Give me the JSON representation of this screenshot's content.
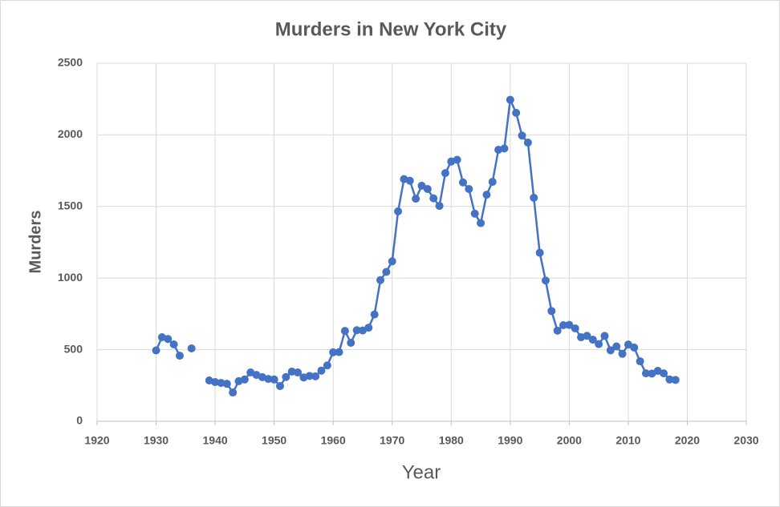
{
  "chart_data": {
    "type": "line",
    "title": "Murders in New York City",
    "x_label": "Year",
    "y_label": "Murders",
    "x": [
      1930,
      1931,
      1932,
      1933,
      1934,
      1935,
      1936,
      1937,
      1938,
      1939,
      1940,
      1941,
      1942,
      1943,
      1944,
      1945,
      1946,
      1947,
      1948,
      1949,
      1950,
      1951,
      1952,
      1953,
      1954,
      1955,
      1956,
      1957,
      1958,
      1959,
      1960,
      1961,
      1962,
      1963,
      1964,
      1965,
      1966,
      1967,
      1968,
      1969,
      1970,
      1971,
      1972,
      1973,
      1974,
      1975,
      1976,
      1977,
      1978,
      1979,
      1980,
      1981,
      1982,
      1983,
      1984,
      1985,
      1986,
      1987,
      1988,
      1989,
      1990,
      1991,
      1992,
      1993,
      1994,
      1995,
      1996,
      1997,
      1998,
      1999,
      2000,
      2001,
      2002,
      2003,
      2004,
      2005,
      2006,
      2007,
      2008,
      2009,
      2010,
      2011,
      2012,
      2013,
      2014,
      2015,
      2016,
      2017,
      2018
    ],
    "values": [
      495,
      587,
      575,
      537,
      458,
      null,
      509,
      null,
      null,
      285,
      274,
      268,
      262,
      201,
      280,
      292,
      341,
      324,
      308,
      296,
      292,
      246,
      309,
      347,
      341,
      306,
      317,
      314,
      354,
      390,
      482,
      483,
      631,
      548,
      636,
      634,
      654,
      746,
      986,
      1043,
      1117,
      1466,
      1691,
      1680,
      1554,
      1645,
      1622,
      1557,
      1504,
      1733,
      1814,
      1826,
      1668,
      1622,
      1450,
      1384,
      1582,
      1672,
      1896,
      1905,
      2245,
      2154,
      1995,
      1946,
      1561,
      1177,
      983,
      770,
      633,
      671,
      673,
      649,
      587,
      597,
      570,
      539,
      596,
      496,
      523,
      471,
      536,
      515,
      419,
      335,
      333,
      352,
      335,
      292,
      289
    ],
    "color": "#4472c4",
    "xlim": [
      1920,
      2030
    ],
    "xticks": [
      1920,
      1930,
      1940,
      1950,
      1960,
      1970,
      1980,
      1990,
      2000,
      2010,
      2020,
      2030
    ],
    "ylim": [
      0,
      2500
    ],
    "yticks": [
      0,
      500,
      1000,
      1500,
      2000,
      2500
    ],
    "grid": true
  }
}
